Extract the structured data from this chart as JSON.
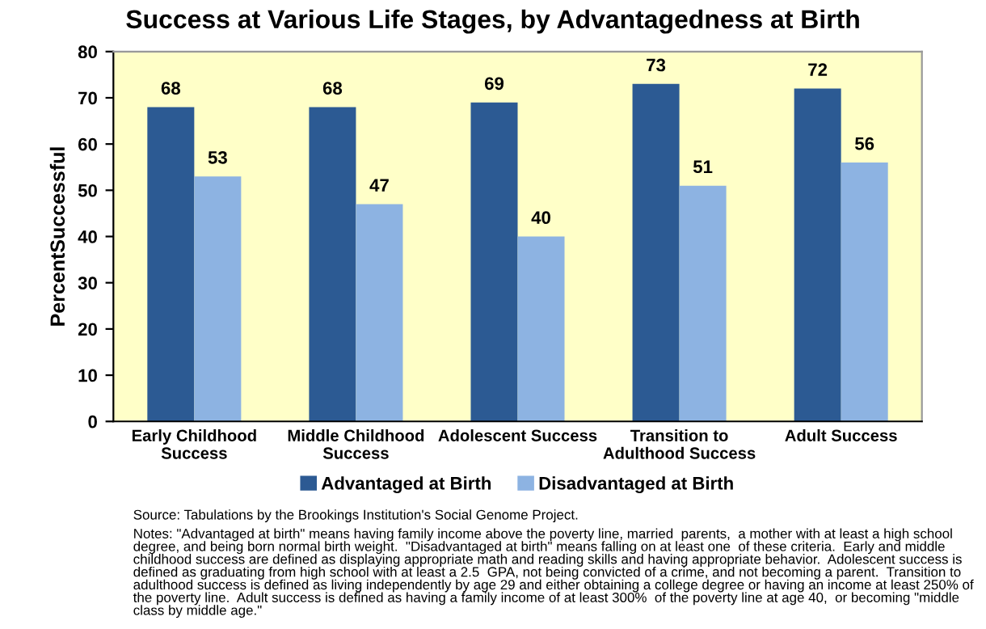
{
  "chart_data": {
    "type": "bar",
    "title": "Success at Various Life Stages, by Advantagedness at Birth",
    "ylabel": "PercentSuccessful",
    "categories": [
      "Early Childhood\nSuccess",
      "Middle Childhood\nSuccess",
      "Adolescent Success",
      "Transition to\nAdulthood Success",
      "Adult Success"
    ],
    "series": [
      {
        "name": "Advantaged at Birth",
        "color": "#2c5a93",
        "values": [
          68,
          68,
          69,
          73,
          72
        ]
      },
      {
        "name": "Disadvantaged at Birth",
        "color": "#8db3e2",
        "values": [
          53,
          47,
          40,
          51,
          56
        ]
      }
    ],
    "ylim": [
      0,
      80
    ],
    "yticks": [
      0,
      10,
      20,
      30,
      40,
      50,
      60,
      70,
      80
    ],
    "grid": false,
    "legend": "bottom",
    "data_labels": true,
    "annotations": [
      "Source: Tabulations by the Brookings Institution's Social Genome Project.",
      "Notes: \"Advantaged at birth\" means having family income above the poverty line, married  parents,  a mother with at least a high school degree, and being born normal birth weight.  \"Disadvantaged at birth\" means falling on at least one  of these criteria.  Early and middle childhood success are defined as displaying appropriate math and reading skills and having appropriate behavior.  Adolescent success is defined as graduating from high school with at least a 2.5  GPA, not being convicted of a crime, and not becoming a parent.  Transition to adulthood success is defined as living independently by age 29 and either obtaining a college degree or having an income at least 250% of the poverty line.  Adult success is defined as having a family income of at least 300%  of the poverty line at age 40,  or becoming \"middle class by middle age.\""
    ]
  }
}
